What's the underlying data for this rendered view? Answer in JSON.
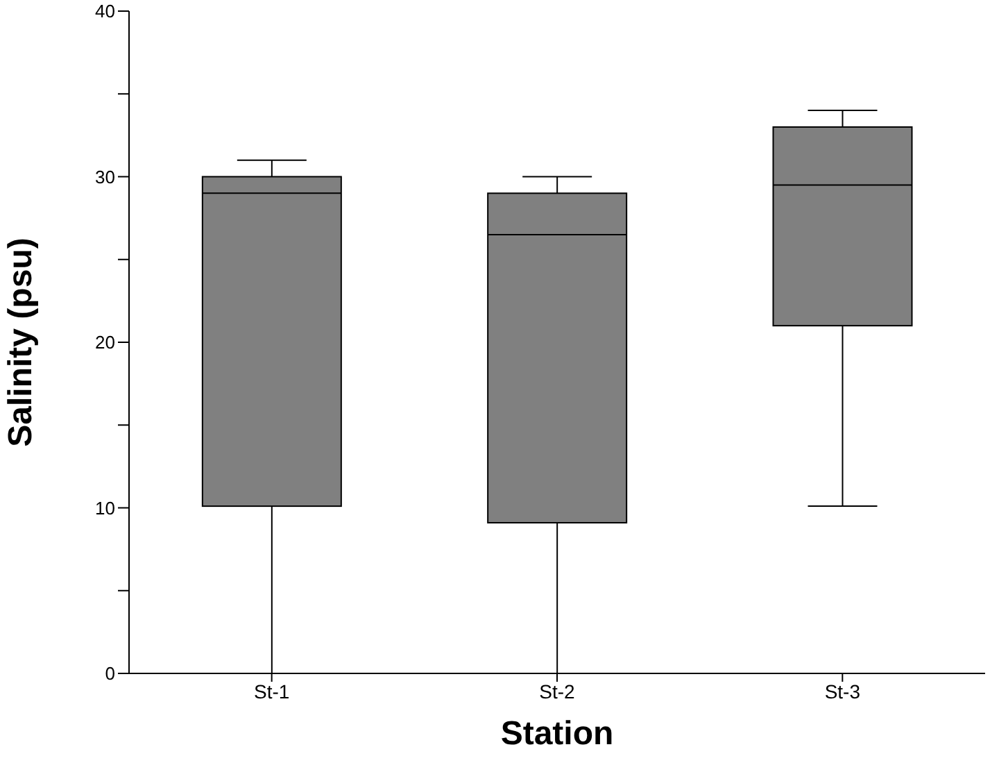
{
  "chart_data": {
    "type": "box",
    "xlabel": "Station",
    "ylabel": "Salinity (psu)",
    "categories": [
      "St-1",
      "St-2",
      "St-3"
    ],
    "color": "#808080",
    "boxes": [
      {
        "low": 0,
        "q1": 10.1,
        "median": 29,
        "q3": 30,
        "high": 31
      },
      {
        "low": 0,
        "q1": 9.1,
        "median": 26.5,
        "q3": 29,
        "high": 30
      },
      {
        "low": 10.1,
        "q1": 21,
        "median": 29.5,
        "q3": 33,
        "high": 34
      }
    ],
    "ylim": [
      0,
      40
    ],
    "yticks": [
      0,
      {
        "value": 5,
        "label": null
      },
      10,
      {
        "value": 15,
        "label": null
      },
      20,
      {
        "value": 25,
        "label": null
      },
      30,
      {
        "value": 35,
        "label": null
      },
      40
    ]
  }
}
